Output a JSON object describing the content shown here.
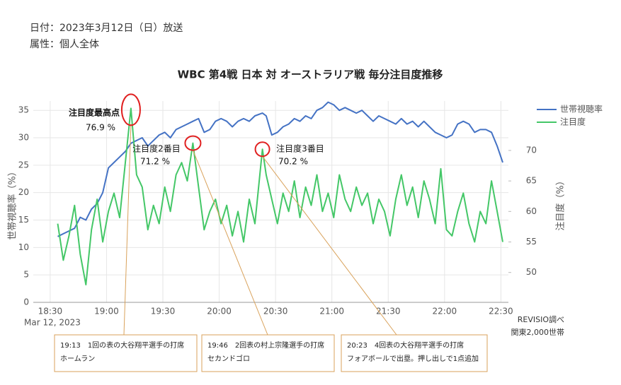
{
  "header": {
    "date": "日付：2023年3月12日（日）放送",
    "attribute": "属性：個人全体"
  },
  "chart_data": {
    "type": "line",
    "title": "WBC 第4戦 日本 対 オーストラリア戦 毎分注目度推移",
    "ylabel": "世帯視聴率（%）",
    "y2label": "注目度（%）",
    "x_date_label": "Mar 12, 2023",
    "source": [
      "REVISIO調べ",
      "関東2,000世帯"
    ],
    "x": [
      "18:34",
      "18:37",
      "18:40",
      "18:43",
      "18:46",
      "18:49",
      "18:52",
      "18:55",
      "18:58",
      "19:01",
      "19:04",
      "19:07",
      "19:10",
      "19:13",
      "19:16",
      "19:19",
      "19:22",
      "19:25",
      "19:28",
      "19:31",
      "19:34",
      "19:37",
      "19:40",
      "19:43",
      "19:46",
      "19:49",
      "19:52",
      "19:55",
      "19:58",
      "20:01",
      "20:04",
      "20:07",
      "20:10",
      "20:13",
      "20:16",
      "20:19",
      "20:23",
      "20:25",
      "20:28",
      "20:31",
      "20:34",
      "20:37",
      "20:40",
      "20:43",
      "20:46",
      "20:49",
      "20:52",
      "20:55",
      "20:58",
      "21:01",
      "21:04",
      "21:07",
      "21:10",
      "21:13",
      "21:16",
      "21:19",
      "21:22",
      "21:25",
      "21:28",
      "21:31",
      "21:34",
      "21:37",
      "21:40",
      "21:43",
      "21:46",
      "21:49",
      "21:52",
      "21:55",
      "21:58",
      "22:01",
      "22:04",
      "22:07",
      "22:10",
      "22:13",
      "22:16",
      "22:19",
      "22:22",
      "22:25",
      "22:28",
      "22:31"
    ],
    "xlim": [
      "18:21",
      "22:34"
    ],
    "xticks": [
      "18:30",
      "19:00",
      "19:30",
      "20:00",
      "20:30",
      "21:00",
      "21:30",
      "22:00",
      "22:30"
    ],
    "ylim": [
      0,
      36.7
    ],
    "yticks": [
      0,
      5,
      10,
      15,
      20,
      25,
      30,
      35
    ],
    "y2lim": [
      45.1,
      78.1
    ],
    "y2ticks": [
      50,
      55,
      60,
      65,
      70
    ],
    "grid": true,
    "legend": "top-right",
    "series": [
      {
        "name": "世帯視聴率",
        "color": "#4472c4",
        "axis": "y",
        "values": [
          12.0,
          12.5,
          13.0,
          13.5,
          15.5,
          15.0,
          17.0,
          18.0,
          20.0,
          24.5,
          25.5,
          26.5,
          27.5,
          29.0,
          29.5,
          30.0,
          28.5,
          29.5,
          30.5,
          31.0,
          30.0,
          31.5,
          32.0,
          32.5,
          33.0,
          33.5,
          31.0,
          31.5,
          33.0,
          33.5,
          33.0,
          32.0,
          33.0,
          33.5,
          33.0,
          34.0,
          34.5,
          34.0,
          30.5,
          31.0,
          32.0,
          32.5,
          33.5,
          33.0,
          34.0,
          33.5,
          35.0,
          35.5,
          36.5,
          36.0,
          35.0,
          35.5,
          35.0,
          34.5,
          35.0,
          34.0,
          33.0,
          34.0,
          33.5,
          33.0,
          32.5,
          33.5,
          32.5,
          33.0,
          32.0,
          33.0,
          32.0,
          31.0,
          30.5,
          30.0,
          30.5,
          32.5,
          33.0,
          32.5,
          31.0,
          31.5,
          31.5,
          31.0,
          28.5,
          25.5
        ]
      },
      {
        "name": "注目度",
        "color": "#44c767",
        "axis": "y2",
        "values": [
          58,
          52,
          56,
          61,
          53,
          48,
          57,
          62,
          55,
          60,
          63,
          59,
          68,
          76.9,
          66,
          64,
          57,
          61,
          58,
          64,
          60,
          66,
          68,
          65,
          71.2,
          64,
          57,
          60,
          62,
          58,
          61,
          56,
          60,
          55,
          62,
          58,
          70.2,
          66,
          62,
          58,
          63,
          60,
          65,
          59,
          64,
          61,
          66,
          60,
          63,
          59,
          66,
          62,
          60,
          64,
          61,
          63,
          58,
          62,
          60,
          56,
          62,
          66,
          61,
          64,
          59,
          65,
          62,
          58,
          67,
          57,
          56,
          60,
          63,
          58,
          55,
          60,
          58,
          65,
          60,
          55
        ]
      }
    ],
    "annotations": [
      {
        "title": "注目度最高点",
        "value_label": "76.9 %",
        "note": [
          "19:13　1回の表の大谷翔平選手の打席",
          "ホームラン"
        ]
      },
      {
        "title": "注目度2番目",
        "value_label": "71.2 %",
        "note": [
          "19:46　2回表の村上宗隆選手の打席",
          "セカンドゴロ"
        ]
      },
      {
        "title": "注目度3番目",
        "value_label": "70.2 %",
        "note": [
          "20:23　4回表の大谷翔平選手の打席",
          "フォアボールで出塁。押し出しで1点追加"
        ]
      }
    ]
  }
}
